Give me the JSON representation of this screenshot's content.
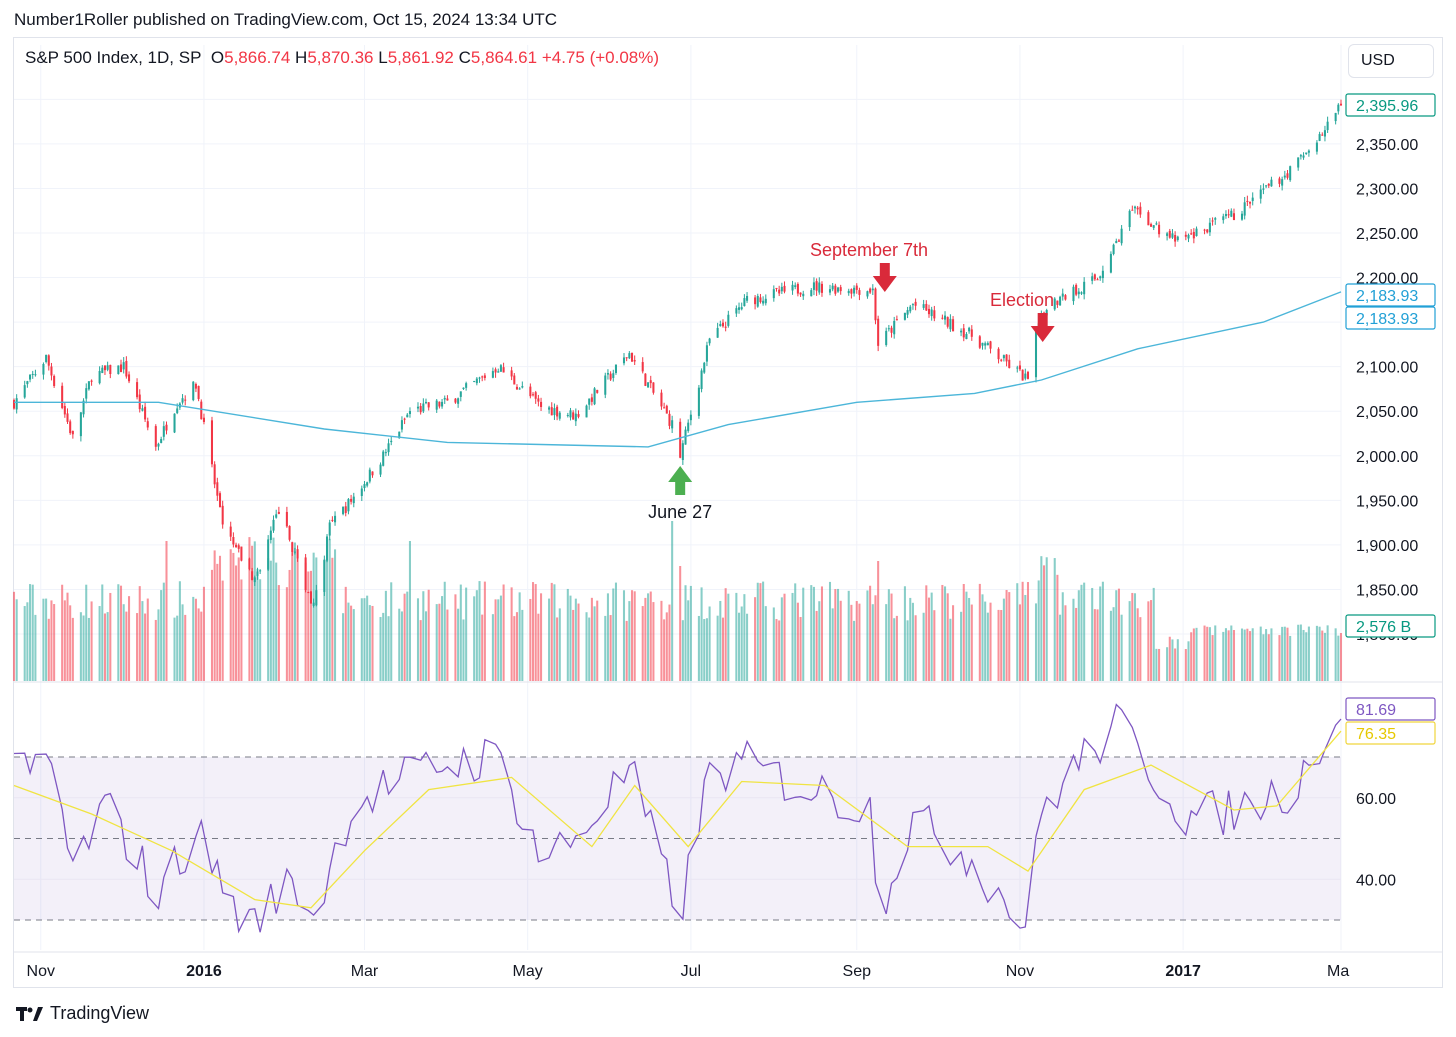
{
  "header": {
    "publish_line": "Number1Roller published on TradingView.com, Oct 15, 2024 13:34 UTC"
  },
  "legend": {
    "symbol": "S&P 500 Index, 1D, SP",
    "o_label": "O",
    "o_value": "5,866.74",
    "h_label": "H",
    "h_value": "5,870.36",
    "l_label": "L",
    "l_value": "5,861.92",
    "c_label": "C",
    "c_value": "5,864.61",
    "change": "+4.75 (+0.08%)"
  },
  "currency": "USD",
  "footer": {
    "brand": "TradingView"
  },
  "colors": {
    "up": "#26a69a",
    "down": "#f23645",
    "ma": "#4cb6d9",
    "rsi": "#7e57c2",
    "rsi_ma": "#f0e442",
    "annotation_red": "#d92a3a",
    "annotation_green": "#4caf50"
  },
  "chart_data": [
    {
      "type": "candlestick",
      "title": "S&P 500 Index, 1D, SP",
      "ylim": [
        1800,
        2420
      ],
      "y_ticks": [
        1800,
        1850,
        1900,
        1950,
        2000,
        2050,
        2100,
        2150,
        2200,
        2250,
        2300,
        2350
      ],
      "y_tick_labels": [
        "1,800.00",
        "1,850.00",
        "1,900.00",
        "1,950.00",
        "2,000.00",
        "2,050.00",
        "2,100.00",
        "2,150.00",
        "2,200.00",
        "2,250.00",
        "2,300.00",
        "2,350.00"
      ],
      "x_tick_labels": [
        "Nov",
        "2016",
        "Mar",
        "May",
        "Jul",
        "Sep",
        "Nov",
        "2017",
        "Ma"
      ],
      "x_range": [
        "2015-10-22",
        "2017-03-01"
      ],
      "close_points": [
        [
          "2015-10-22",
          2060
        ],
        [
          "2015-11-03",
          2110
        ],
        [
          "2015-11-13",
          2020
        ],
        [
          "2015-11-20",
          2090
        ],
        [
          "2015-12-02",
          2100
        ],
        [
          "2015-12-14",
          2010
        ],
        [
          "2015-12-22",
          2060
        ],
        [
          "2015-12-29",
          2080
        ],
        [
          "2016-01-08",
          1920
        ],
        [
          "2016-01-20",
          1860
        ],
        [
          "2016-01-29",
          1940
        ],
        [
          "2016-02-11",
          1830
        ],
        [
          "2016-02-17",
          1920
        ],
        [
          "2016-02-25",
          1950
        ],
        [
          "2016-03-08",
          2000
        ],
        [
          "2016-03-18",
          2050
        ],
        [
          "2016-04-01",
          2060
        ],
        [
          "2016-04-20",
          2100
        ],
        [
          "2016-05-06",
          2055
        ],
        [
          "2016-05-19",
          2045
        ],
        [
          "2016-06-08",
          2115
        ],
        [
          "2016-06-24",
          2035
        ],
        [
          "2016-06-27",
          2000
        ],
        [
          "2016-07-08",
          2130
        ],
        [
          "2016-07-22",
          2175
        ],
        [
          "2016-08-15",
          2190
        ],
        [
          "2016-09-07",
          2186
        ],
        [
          "2016-09-09",
          2125
        ],
        [
          "2016-09-22",
          2170
        ],
        [
          "2016-10-14",
          2135
        ],
        [
          "2016-11-04",
          2085
        ],
        [
          "2016-11-09",
          2165
        ],
        [
          "2016-11-30",
          2200
        ],
        [
          "2016-12-13",
          2275
        ],
        [
          "2016-12-30",
          2240
        ],
        [
          "2017-01-20",
          2270
        ],
        [
          "2017-02-10",
          2320
        ],
        [
          "2017-02-23",
          2365
        ],
        [
          "2017-03-01",
          2395.96
        ]
      ],
      "moving_average": [
        [
          "2015-10-22",
          2060
        ],
        [
          "2015-12-15",
          2060
        ],
        [
          "2016-02-15",
          2030
        ],
        [
          "2016-04-01",
          2015
        ],
        [
          "2016-06-15",
          2010
        ],
        [
          "2016-07-15",
          2035
        ],
        [
          "2016-09-01",
          2060
        ],
        [
          "2016-10-15",
          2070
        ],
        [
          "2016-11-09",
          2085
        ],
        [
          "2016-12-15",
          2120
        ],
        [
          "2017-01-31",
          2150
        ],
        [
          "2017-03-01",
          2183.93
        ]
      ],
      "price_tags": [
        {
          "label": "2,395.96",
          "value": 2395.96,
          "style": "green"
        },
        {
          "label": "2,183.93",
          "value": 2183.93,
          "style": "blue-filled"
        },
        {
          "label": "2,183.93",
          "value": 2158,
          "style": "blue-outline"
        },
        {
          "label": "2,576 B",
          "value": 1810,
          "style": "green"
        }
      ],
      "annotations": [
        {
          "text": "September 7th",
          "date": "2016-09-07",
          "arrow": "down",
          "color": "red"
        },
        {
          "text": "Election",
          "date": "2016-11-08",
          "arrow": "down",
          "color": "red"
        },
        {
          "text": "June 27",
          "date": "2016-06-27",
          "arrow": "up",
          "color": "green"
        }
      ]
    },
    {
      "type": "bar",
      "title": "Volume",
      "last_value_label": "2,576 B",
      "note": "volume histogram, tall bars around 2016-01, 2016-06-24 and 2016-11-09"
    },
    {
      "type": "line",
      "title": "RSI",
      "ylim": [
        25,
        85
      ],
      "y_ticks": [
        40,
        60
      ],
      "y_tick_labels": [
        "40.00",
        "60.00"
      ],
      "bands": [
        30,
        50,
        70
      ],
      "series": [
        {
          "values_points": [
            [
              "2015-10-22",
              65
            ],
            [
              "2015-11-05",
              68
            ],
            [
              "2015-11-13",
              42
            ],
            [
              "2015-11-25",
              58
            ],
            [
              "2015-12-08",
              45
            ],
            [
              "2015-12-14",
              35
            ],
            [
              "2015-12-29",
              52
            ],
            [
              "2016-01-15",
              30
            ],
            [
              "2016-01-20",
              29
            ],
            [
              "2016-02-03",
              40
            ],
            [
              "2016-02-11",
              31
            ],
            [
              "2016-02-25",
              58
            ],
            [
              "2016-03-10",
              63
            ],
            [
              "2016-03-28",
              68
            ],
            [
              "2016-04-20",
              70
            ],
            [
              "2016-05-06",
              45
            ],
            [
              "2016-05-19",
              50
            ],
            [
              "2016-06-08",
              67
            ],
            [
              "2016-06-24",
              36
            ],
            [
              "2016-06-27",
              32
            ],
            [
              "2016-07-08",
              66
            ],
            [
              "2016-07-22",
              68
            ],
            [
              "2016-08-15",
              62
            ],
            [
              "2016-09-07",
              57
            ],
            [
              "2016-09-09",
              32
            ],
            [
              "2016-09-22",
              55
            ],
            [
              "2016-10-14",
              45
            ],
            [
              "2016-11-04",
              28
            ],
            [
              "2016-11-09",
              57
            ],
            [
              "2016-11-22",
              68
            ],
            [
              "2016-12-08",
              78
            ],
            [
              "2016-12-21",
              66
            ],
            [
              "2017-01-03",
              55
            ],
            [
              "2017-01-20",
              57
            ],
            [
              "2017-02-10",
              62
            ],
            [
              "2017-02-23",
              75
            ],
            [
              "2017-03-01",
              81.69
            ]
          ],
          "last_value_label": "81.69"
        },
        {
          "values_points": [
            [
              "2015-10-22",
              63
            ],
            [
              "2015-11-20",
              56
            ],
            [
              "2015-12-20",
              47
            ],
            [
              "2016-01-20",
              35
            ],
            [
              "2016-02-10",
              33
            ],
            [
              "2016-03-01",
              47
            ],
            [
              "2016-03-25",
              62
            ],
            [
              "2016-04-25",
              65
            ],
            [
              "2016-05-25",
              48
            ],
            [
              "2016-06-10",
              63
            ],
            [
              "2016-06-30",
              48
            ],
            [
              "2016-07-20",
              64
            ],
            [
              "2016-08-20",
              63
            ],
            [
              "2016-09-20",
              48
            ],
            [
              "2016-10-20",
              48
            ],
            [
              "2016-11-04",
              42
            ],
            [
              "2016-11-25",
              62
            ],
            [
              "2016-12-20",
              68
            ],
            [
              "2017-01-20",
              57
            ],
            [
              "2017-02-05",
              58
            ],
            [
              "2017-03-01",
              76.35
            ]
          ],
          "last_value_label": "76.35"
        }
      ]
    }
  ]
}
